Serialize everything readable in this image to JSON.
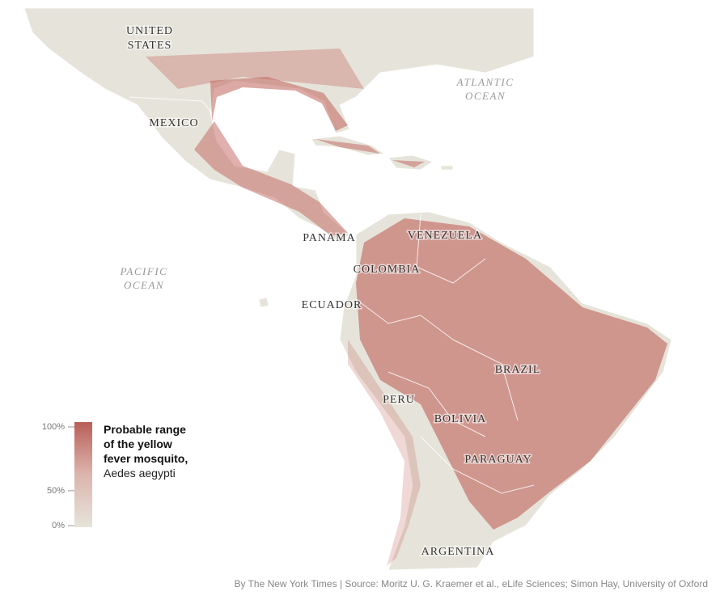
{
  "map": {
    "labels": {
      "united_states": [
        "UNITED",
        "STATES"
      ],
      "mexico": "MEXICO",
      "atlantic": [
        "ATLANTIC",
        "OCEAN"
      ],
      "pacific": [
        "PACIFIC",
        "OCEAN"
      ],
      "panama": "PANAMA",
      "venezuela": "VENEZUELA",
      "colombia": "COLOMBIA",
      "ecuador": "ECUADOR",
      "brazil": "BRAZIL",
      "peru": "PERU",
      "bolivia": "BOLIVIA",
      "paraguay": "PARAGUAY",
      "argentina": "ARGENTINA"
    },
    "legend": {
      "ticks": [
        {
          "value": 100,
          "label": "100%"
        },
        {
          "value": 50,
          "label": "50%"
        },
        {
          "value": 0,
          "label": "0%"
        }
      ],
      "title_lines": [
        "Probable range",
        "of the yellow",
        "fever mosquito,"
      ],
      "species": "Aedes aegypti"
    },
    "credit": "By The New York Times | Source: Moritz U. G. Kraemer et al., eLife Sciences; Simon Hay, University of Oxford"
  }
}
